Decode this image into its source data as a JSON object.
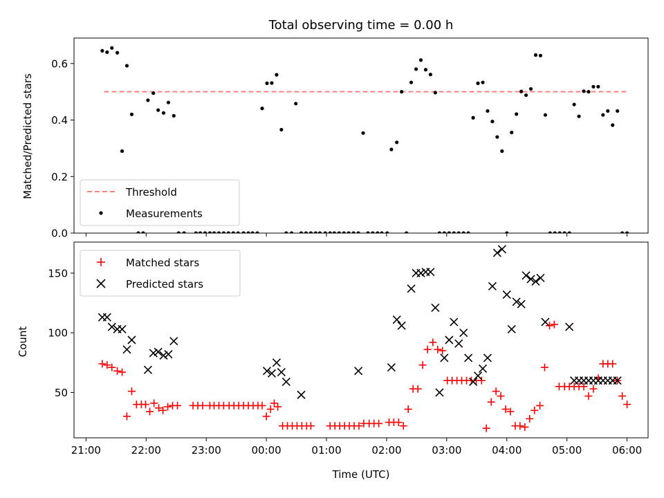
{
  "chart_data": [
    {
      "type": "scatter",
      "panel": "top",
      "title": "Total observing time = 0.00 h",
      "xlabel": "",
      "ylabel": "Matched/Predicted stars",
      "xlim": [
        -0.2,
        9.35
      ],
      "ylim": [
        0,
        0.69
      ],
      "yticks": [
        0.0,
        0.2,
        0.4,
        0.6
      ],
      "ytick_labels": [
        "0.0",
        "0.2",
        "0.4",
        "0.6"
      ],
      "legend_position": "lower-left",
      "series": [
        {
          "name": "Threshold",
          "style": "dashed-line",
          "color": "#ff7f7f",
          "x": [
            0.3,
            9.0
          ],
          "y": [
            0.5,
            0.5
          ]
        },
        {
          "name": "Measurements",
          "style": "dot",
          "color": "#000000",
          "x": [
            0.27,
            0.35,
            0.43,
            0.52,
            0.6,
            0.68,
            0.76,
            0.87,
            0.95,
            1.03,
            1.12,
            1.2,
            1.29,
            1.37,
            1.46,
            1.54,
            1.63,
            1.83,
            1.9,
            1.98,
            2.06,
            2.13,
            2.21,
            2.29,
            2.37,
            2.45,
            2.53,
            2.62,
            2.7,
            2.77,
            2.85,
            2.93,
            3.01,
            3.09,
            3.17,
            3.25,
            3.33,
            3.42,
            3.49,
            3.58,
            3.66,
            3.74,
            3.82,
            3.89,
            3.98,
            4.06,
            4.13,
            4.21,
            4.29,
            4.37,
            4.45,
            4.53,
            4.61,
            4.69,
            4.77,
            4.85,
            4.92,
            5.01,
            5.08,
            5.17,
            5.25,
            5.33,
            5.41,
            5.49,
            5.57,
            5.65,
            5.73,
            5.81,
            5.88,
            5.96,
            6.04,
            6.12,
            6.2,
            6.28,
            6.36,
            6.44,
            6.52,
            6.6,
            6.68,
            6.76,
            6.84,
            6.92,
            7.0,
            7.08,
            7.16,
            7.24,
            7.32,
            7.4,
            7.48,
            7.56,
            7.64,
            7.72,
            7.8,
            7.88,
            7.96,
            8.04,
            8.12,
            8.2,
            8.28,
            8.36,
            8.44,
            8.52,
            8.6,
            8.68,
            8.76,
            8.84,
            8.92,
            9.0
          ],
          "y": [
            0.645,
            0.64,
            0.655,
            0.638,
            0.29,
            0.592,
            0.42,
            0.0,
            0.0,
            0.47,
            0.495,
            0.435,
            0.425,
            0.462,
            0.415,
            0.0,
            0.0,
            0.0,
            0.0,
            0.0,
            0.0,
            0.0,
            0.0,
            0.0,
            0.0,
            0.0,
            0.0,
            0.0,
            0.0,
            0.0,
            0.0,
            0.441,
            0.53,
            0.531,
            0.56,
            0.366,
            0.0,
            0.0,
            0.458,
            0.0,
            0.0,
            0.0,
            0.0,
            0.0,
            0.0,
            0.0,
            0.0,
            0.0,
            0.0,
            0.0,
            0.0,
            0.0,
            0.354,
            0.0,
            0.0,
            0.0,
            0.0,
            0.0,
            0.296,
            0.321,
            0.5,
            0.0,
            0.533,
            0.58,
            0.612,
            0.578,
            0.561,
            0.497,
            0.0,
            0.0,
            0.0,
            0.0,
            0.0,
            0.0,
            0.0,
            0.408,
            0.53,
            0.533,
            0.432,
            0.395,
            0.34,
            0.29,
            0.0,
            0.356,
            0.421,
            0.501,
            0.488,
            0.51,
            0.63,
            0.628,
            0.418,
            0.0,
            0.0,
            0.0,
            0.0,
            0.0,
            0.455,
            0.413,
            0.502,
            0.5,
            0.518,
            0.518,
            0.418,
            0.432,
            0.382,
            0.432,
            0.0,
            0.0
          ]
        }
      ]
    },
    {
      "type": "scatter",
      "panel": "bottom",
      "xlabel": "Time (UTC)",
      "ylabel": "Count",
      "xlim": [
        -0.2,
        9.35
      ],
      "ylim": [
        12,
        176
      ],
      "xticks": [
        0,
        1,
        2,
        3,
        4,
        5,
        6,
        7,
        8,
        9
      ],
      "xtick_labels": [
        "21:00",
        "22:00",
        "23:00",
        "00:00",
        "01:00",
        "02:00",
        "03:00",
        "04:00",
        "05:00",
        "06:00"
      ],
      "yticks": [
        50,
        100,
        150
      ],
      "ytick_labels": [
        "50",
        "100",
        "150"
      ],
      "legend_position": "upper-left",
      "series": [
        {
          "name": "Matched stars",
          "marker": "plus",
          "color": "#ff0000",
          "x": [
            0.27,
            0.35,
            0.43,
            0.52,
            0.6,
            0.68,
            0.76,
            0.84,
            0.92,
            0.99,
            1.06,
            1.13,
            1.21,
            1.28,
            1.36,
            1.44,
            1.52,
            1.78,
            1.86,
            1.94,
            2.06,
            2.13,
            2.21,
            2.29,
            2.38,
            2.46,
            2.54,
            2.62,
            2.7,
            2.78,
            2.86,
            2.93,
            3.0,
            3.07,
            3.13,
            3.19,
            3.27,
            3.35,
            3.43,
            3.51,
            3.59,
            3.67,
            3.74,
            4.06,
            4.14,
            4.22,
            4.3,
            4.38,
            4.46,
            4.54,
            4.62,
            4.71,
            4.79,
            4.87,
            5.04,
            5.12,
            5.2,
            5.28,
            5.36,
            5.44,
            5.52,
            5.6,
            5.68,
            5.77,
            5.85,
            5.93,
            6.01,
            6.09,
            6.17,
            6.25,
            6.33,
            6.41,
            6.49,
            6.58,
            6.66,
            6.74,
            6.82,
            6.9,
            6.98,
            7.06,
            7.14,
            7.22,
            7.3,
            7.38,
            7.46,
            7.55,
            7.63,
            7.71,
            7.79,
            7.87,
            7.96,
            8.04,
            8.12,
            8.2,
            8.28,
            8.36,
            8.44,
            8.52,
            8.6,
            8.68,
            8.76,
            8.84,
            8.92,
            9.0
          ],
          "y": [
            74,
            73,
            71,
            68,
            67,
            30,
            51,
            40,
            40,
            40,
            34,
            41,
            37,
            35,
            38,
            39,
            39,
            39,
            39,
            39,
            39,
            39,
            39,
            39,
            39,
            39,
            39,
            39,
            39,
            39,
            39,
            39,
            30,
            36,
            41,
            38,
            22,
            22,
            22,
            22,
            22,
            22,
            22,
            22,
            22,
            22,
            22,
            22,
            22,
            22,
            24,
            24,
            24,
            24,
            25,
            25,
            25,
            22,
            36,
            53,
            53,
            73,
            86,
            92,
            86,
            85,
            60,
            60,
            60,
            60,
            60,
            60,
            60,
            60,
            20,
            42,
            51,
            47,
            36,
            34,
            22,
            22,
            21,
            28,
            35,
            39,
            71,
            106,
            107,
            55,
            55,
            55,
            55,
            55,
            55,
            47,
            53,
            62,
            74,
            74,
            74,
            60,
            47,
            40
          ]
        },
        {
          "name": "Predicted stars",
          "marker": "x",
          "color": "#000000",
          "x": [
            0.27,
            0.35,
            0.43,
            0.52,
            0.6,
            0.68,
            0.76,
            1.03,
            1.12,
            1.2,
            1.29,
            1.37,
            1.46,
            3.01,
            3.09,
            3.17,
            3.25,
            3.33,
            3.58,
            4.53,
            5.08,
            5.17,
            5.25,
            5.41,
            5.49,
            5.57,
            5.65,
            5.73,
            5.81,
            5.88,
            5.96,
            6.04,
            6.12,
            6.2,
            6.28,
            6.36,
            6.44,
            6.52,
            6.6,
            6.68,
            6.76,
            6.84,
            6.92,
            7.0,
            7.08,
            7.16,
            7.24,
            7.32,
            7.4,
            7.48,
            7.56,
            7.64,
            8.04,
            8.12,
            8.2,
            8.28,
            8.36,
            8.44,
            8.52,
            8.6,
            8.68,
            8.76,
            8.84
          ],
          "y": [
            113,
            113,
            105,
            103,
            103,
            86,
            94,
            69,
            83,
            84,
            81,
            82,
            93,
            68,
            66,
            75,
            67,
            59,
            48,
            68,
            71,
            111,
            106,
            137,
            150,
            150,
            151,
            151,
            121,
            50,
            79,
            94,
            109,
            91,
            100,
            79,
            59,
            64,
            70,
            79,
            139,
            167,
            170,
            132,
            103,
            126,
            124,
            148,
            145,
            143,
            146,
            109,
            105,
            60,
            60,
            60,
            60,
            60,
            60,
            60,
            60,
            60,
            60
          ]
        }
      ]
    }
  ]
}
